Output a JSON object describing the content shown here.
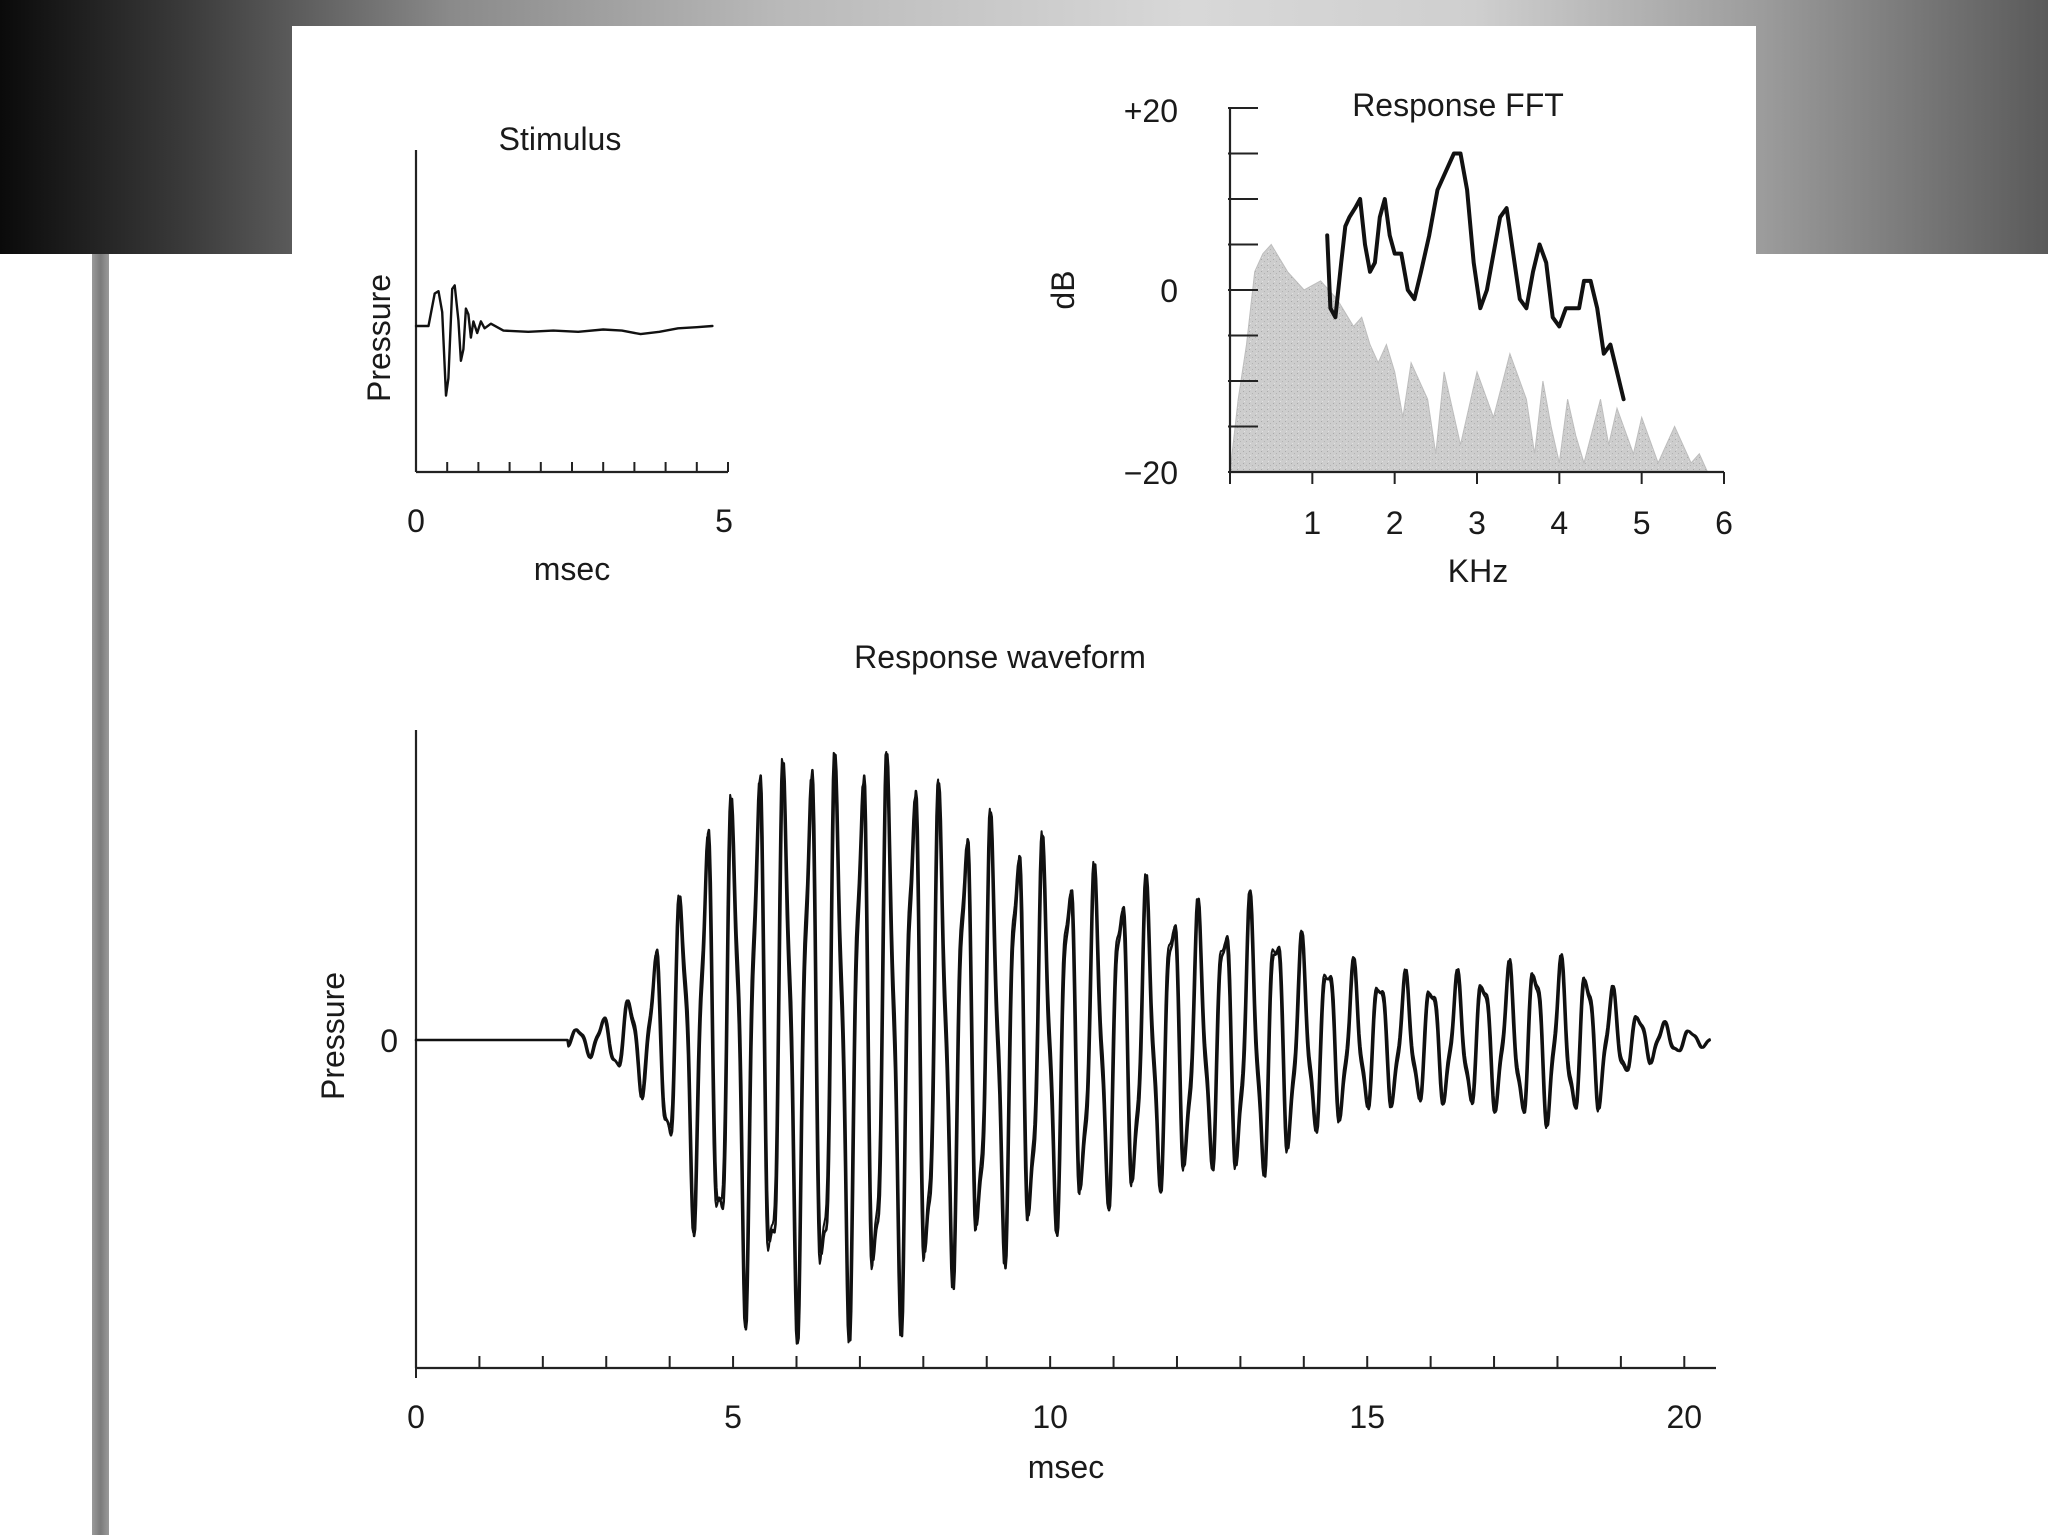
{
  "slide": {
    "colors": {
      "background": "#ffffff",
      "band_dark": "#0a0a0a",
      "band_light": "#d8d8d8",
      "left_bar": "#7b7b7b",
      "ink": "#111111",
      "noise_fill": "#c8c8c8"
    }
  },
  "chart_data": [
    {
      "id": "stimulus",
      "type": "line",
      "title": "Stimulus",
      "xlabel": "msec",
      "ylabel": "Pressure",
      "xlim": [
        0,
        5
      ],
      "ylim": [
        -1,
        1
      ],
      "x_tick_labels": [
        "0",
        "5"
      ],
      "x_minor_ticks": [
        0.5,
        1,
        1.5,
        2,
        2.5,
        3,
        3.5,
        4,
        4.5,
        5
      ],
      "grid": false,
      "series": [
        {
          "values": [
            [
              0,
              0
            ],
            [
              0.2,
              0
            ],
            [
              0.3,
              0.28
            ],
            [
              0.36,
              0.3
            ],
            [
              0.42,
              0.12
            ],
            [
              0.48,
              -0.6
            ],
            [
              0.52,
              -0.45
            ],
            [
              0.58,
              0.32
            ],
            [
              0.62,
              0.35
            ],
            [
              0.68,
              0.05
            ],
            [
              0.72,
              -0.3
            ],
            [
              0.76,
              -0.2
            ],
            [
              0.8,
              0.15
            ],
            [
              0.84,
              0.1
            ],
            [
              0.88,
              -0.1
            ],
            [
              0.92,
              0.04
            ],
            [
              0.98,
              -0.06
            ],
            [
              1.04,
              0.04
            ],
            [
              1.1,
              -0.02
            ],
            [
              1.2,
              0.02
            ],
            [
              1.4,
              -0.04
            ],
            [
              1.8,
              -0.05
            ],
            [
              2.2,
              -0.04
            ],
            [
              2.6,
              -0.05
            ],
            [
              3.0,
              -0.03
            ],
            [
              3.3,
              -0.04
            ],
            [
              3.6,
              -0.07
            ],
            [
              3.9,
              -0.05
            ],
            [
              4.2,
              -0.02
            ],
            [
              4.5,
              -0.01
            ],
            [
              4.75,
              0
            ]
          ]
        }
      ]
    },
    {
      "id": "response-fft",
      "type": "area",
      "title": "Response FFT",
      "xlabel": "KHz",
      "ylabel": "dB",
      "xlim": [
        0,
        6
      ],
      "ylim": [
        -20,
        20
      ],
      "x_tick_labels": [
        "1",
        "2",
        "3",
        "4",
        "5",
        "6"
      ],
      "y_tick_labels": [
        "+20",
        "0",
        "−20"
      ],
      "y_minor_ticks": [
        -20,
        -15,
        -10,
        -5,
        0,
        5,
        10,
        15,
        20
      ],
      "grid": false,
      "series": [
        {
          "style": "shaded noise spectrum",
          "values": [
            [
              0,
              -20
            ],
            [
              0.1,
              -12
            ],
            [
              0.2,
              -6
            ],
            [
              0.3,
              2
            ],
            [
              0.4,
              4
            ],
            [
              0.5,
              5
            ],
            [
              0.7,
              2
            ],
            [
              0.9,
              0
            ],
            [
              1.1,
              1
            ],
            [
              1.3,
              -1
            ],
            [
              1.5,
              -4
            ],
            [
              1.6,
              -3
            ],
            [
              1.7,
              -6
            ],
            [
              1.8,
              -8
            ],
            [
              1.9,
              -6
            ],
            [
              2.0,
              -9
            ],
            [
              2.1,
              -14
            ],
            [
              2.2,
              -8
            ],
            [
              2.4,
              -12
            ],
            [
              2.5,
              -18
            ],
            [
              2.6,
              -9
            ],
            [
              2.7,
              -13
            ],
            [
              2.8,
              -17
            ],
            [
              3.0,
              -9
            ],
            [
              3.2,
              -14
            ],
            [
              3.4,
              -7
            ],
            [
              3.6,
              -12
            ],
            [
              3.7,
              -18
            ],
            [
              3.8,
              -10
            ],
            [
              3.9,
              -15
            ],
            [
              4.0,
              -19
            ],
            [
              4.1,
              -12
            ],
            [
              4.2,
              -16
            ],
            [
              4.3,
              -19
            ],
            [
              4.5,
              -12
            ],
            [
              4.6,
              -17
            ],
            [
              4.7,
              -13
            ],
            [
              4.9,
              -18
            ],
            [
              5.0,
              -14
            ],
            [
              5.2,
              -19
            ],
            [
              5.4,
              -15
            ],
            [
              5.6,
              -19
            ],
            [
              5.7,
              -18
            ],
            [
              5.8,
              -20
            ],
            [
              6.0,
              -20
            ]
          ]
        },
        {
          "style": "bold response line",
          "values": [
            [
              1.18,
              6
            ],
            [
              1.22,
              -2
            ],
            [
              1.28,
              -3
            ],
            [
              1.35,
              3
            ],
            [
              1.4,
              7
            ],
            [
              1.45,
              8
            ],
            [
              1.52,
              9
            ],
            [
              1.58,
              10
            ],
            [
              1.64,
              5
            ],
            [
              1.7,
              2
            ],
            [
              1.76,
              3
            ],
            [
              1.82,
              8
            ],
            [
              1.88,
              10
            ],
            [
              1.94,
              6
            ],
            [
              2.0,
              4
            ],
            [
              2.08,
              4
            ],
            [
              2.16,
              0
            ],
            [
              2.24,
              -1
            ],
            [
              2.32,
              2
            ],
            [
              2.42,
              6
            ],
            [
              2.52,
              11
            ],
            [
              2.62,
              13
            ],
            [
              2.72,
              15
            ],
            [
              2.8,
              15
            ],
            [
              2.88,
              11
            ],
            [
              2.96,
              3
            ],
            [
              3.04,
              -2
            ],
            [
              3.12,
              0
            ],
            [
              3.2,
              4
            ],
            [
              3.28,
              8
            ],
            [
              3.36,
              9
            ],
            [
              3.44,
              4
            ],
            [
              3.52,
              -1
            ],
            [
              3.6,
              -2
            ],
            [
              3.68,
              2
            ],
            [
              3.76,
              5
            ],
            [
              3.84,
              3
            ],
            [
              3.92,
              -3
            ],
            [
              4.0,
              -4
            ],
            [
              4.08,
              -2
            ],
            [
              4.16,
              -2
            ],
            [
              4.24,
              -2
            ],
            [
              4.3,
              1
            ],
            [
              4.38,
              1
            ],
            [
              4.46,
              -2
            ],
            [
              4.54,
              -7
            ],
            [
              4.62,
              -6
            ],
            [
              4.7,
              -9
            ],
            [
              4.78,
              -12
            ]
          ]
        }
      ]
    },
    {
      "id": "response-waveform",
      "type": "line",
      "title": "Response waveform",
      "xlabel": "msec",
      "ylabel": "Pressure",
      "xlim": [
        0,
        20.5
      ],
      "ylim": [
        -1,
        1
      ],
      "x_tick_labels": [
        "0",
        "5",
        "10",
        "15",
        "20"
      ],
      "y_tick_labels": [
        "0"
      ],
      "x_minor_ticks": [
        1,
        2,
        3,
        4,
        5,
        6,
        7,
        8,
        9,
        10,
        11,
        12,
        13,
        14,
        15,
        16,
        17,
        18,
        19,
        20
      ],
      "grid": false,
      "envelope": [
        [
          2.4,
          0.03
        ],
        [
          3.0,
          0.08
        ],
        [
          3.6,
          0.2
        ],
        [
          4.1,
          0.5
        ],
        [
          4.6,
          0.75
        ],
        [
          5.2,
          0.95
        ],
        [
          6.0,
          1.0
        ],
        [
          7.0,
          1.0
        ],
        [
          7.8,
          0.98
        ],
        [
          8.6,
          0.8
        ],
        [
          9.5,
          0.75
        ],
        [
          10.5,
          0.6
        ],
        [
          11.5,
          0.55
        ],
        [
          12.5,
          0.45
        ],
        [
          13.3,
          0.5
        ],
        [
          14.0,
          0.35
        ],
        [
          15.0,
          0.25
        ],
        [
          16.0,
          0.22
        ],
        [
          17.0,
          0.25
        ],
        [
          17.8,
          0.3
        ],
        [
          18.6,
          0.25
        ],
        [
          19.2,
          0.1
        ],
        [
          20.0,
          0.04
        ],
        [
          20.4,
          0.02
        ]
      ],
      "series": [
        {
          "style": "trace A",
          "cycles_per_msec": 2.45,
          "phase": 0.0
        },
        {
          "style": "trace B",
          "cycles_per_msec": 2.45,
          "phase": 0.35
        }
      ]
    }
  ]
}
